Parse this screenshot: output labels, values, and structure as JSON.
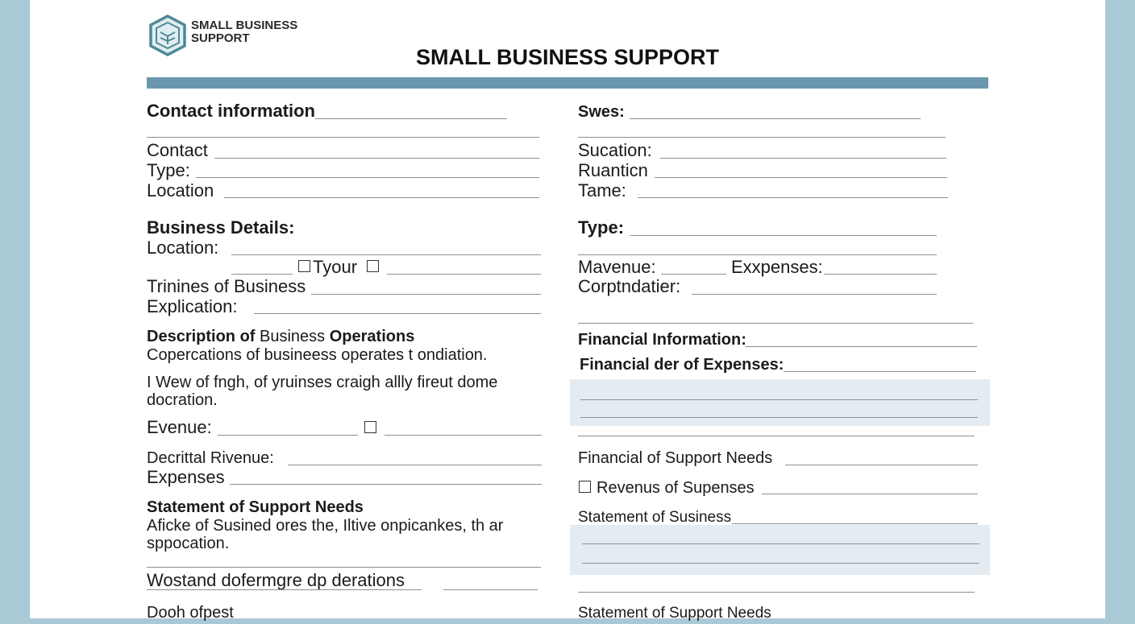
{
  "brand": {
    "logo_text_line1": "SMALL BUSINESS",
    "logo_text_line2": "SUPPORT"
  },
  "form": {
    "title": "SMALL BUSINESS SUPPORT",
    "left": {
      "contact_information": "Contact information",
      "contact": "Contact",
      "type": "Type:",
      "location": "Location",
      "business_details": "Business Details:",
      "location2": "Location:",
      "tyour": "Tyour",
      "trinines": "Trinines of Business",
      "explication": "Explication:",
      "desc_heading_a": "Description of ",
      "desc_heading_b": "Business ",
      "desc_heading_c": "Operations",
      "desc_line1": "Copercations of busineess operates t ondiation.",
      "desc_line2": "I Wew of fngh, of yruinses craigh allly fireut dome",
      "desc_line3": "docration.",
      "evenue": "Evenue:",
      "decrittal_revenue": "Decrittal Rivenue:",
      "expenses": "Expenses",
      "statement_heading": "Statement of Support Needs",
      "statement_line1": "Aficke of Susined ores the, Iltive onpicankes, th ar",
      "statement_line2": "sppocation.",
      "wostand": "Wostand dofermgre dp derations",
      "dooh": "Dooh ofpest"
    },
    "right": {
      "swes": "Swes:",
      "sucation": "Sucation:",
      "ruanticn": "Ruanticn",
      "tame": "Tame:",
      "type": "Type:",
      "mavenue": "Mavenue:",
      "exxpenses": "Exxpenses:",
      "corptndatier": "Corptndatier:",
      "financial_information": "Financial Information:",
      "financial_der": "Financial der of Expenses:",
      "financial_support_needs": "Financial of Support Needs",
      "revenus_of_supenses": "Revenus of Supenses",
      "statement_of_susiness": "Statement of Susiness",
      "statement_of_support_needs": "Statement of Support Needs"
    }
  }
}
